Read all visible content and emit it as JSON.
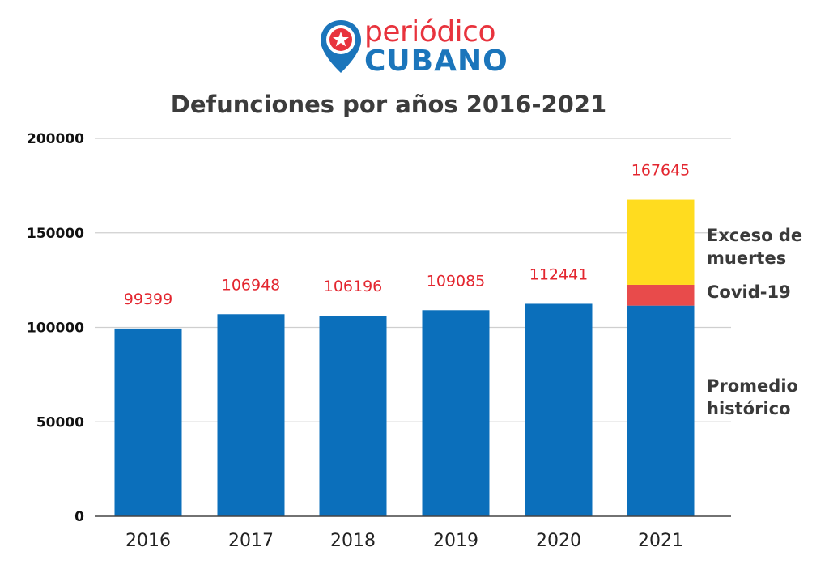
{
  "logo": {
    "line1": "periódico",
    "line2": "CUBANO"
  },
  "colors": {
    "bar": "#0b6fbb",
    "covid": "#e84b4b",
    "excess": "#ffdc1f",
    "value_label": "#e3262f",
    "grid": "#cfcfcf",
    "logo_red": "#e8333d",
    "logo_blue": "#1b75bb"
  },
  "chart_data": {
    "type": "bar",
    "title": "Defunciones por años 2016-2021",
    "xlabel": "",
    "ylabel": "",
    "ylim": [
      0,
      200000
    ],
    "yticks": [
      "0",
      "50000",
      "100000",
      "150000",
      "200000"
    ],
    "categories": [
      "2016",
      "2017",
      "2018",
      "2019",
      "2020",
      "2021"
    ],
    "totals": [
      "99399",
      "106948",
      "106196",
      "109085",
      "112441",
      "167645"
    ],
    "series": [
      {
        "name": "Promedio histórico",
        "values": [
          99399,
          106948,
          106196,
          109085,
          112441,
          111500
        ]
      },
      {
        "name": "Covid-19",
        "values": [
          0,
          0,
          0,
          0,
          0,
          11000
        ]
      },
      {
        "name": "Exceso de muertes",
        "values": [
          0,
          0,
          0,
          0,
          0,
          45145
        ]
      }
    ],
    "series_labels": [
      {
        "lines": [
          "Promedio",
          "histórico"
        ]
      },
      {
        "lines": [
          "Covid-19"
        ]
      },
      {
        "lines": [
          "Exceso de",
          "muertes"
        ]
      }
    ],
    "grid": true
  }
}
